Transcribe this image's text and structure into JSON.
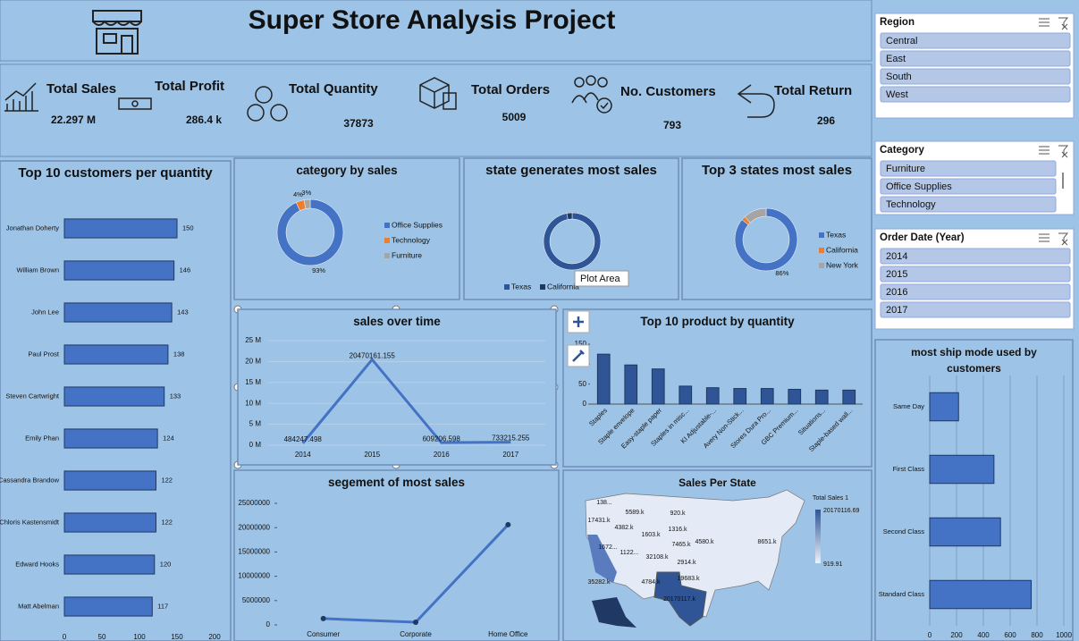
{
  "header": {
    "title": "Super Store Analysis Project"
  },
  "kpis": [
    {
      "label": "Total Sales",
      "value": "22.297 M"
    },
    {
      "label": "Total Profit",
      "value": "286.4 k"
    },
    {
      "label": "Total Quantity",
      "value": "37873"
    },
    {
      "label": "Total Orders",
      "value": "5009"
    },
    {
      "label": "No. Customers",
      "value": "793"
    },
    {
      "label": "Total Return",
      "value": "296"
    }
  ],
  "slicers": [
    {
      "title": "Region",
      "items": [
        "Central",
        "East",
        "South",
        "West"
      ]
    },
    {
      "title": "Category",
      "items": [
        "Furniture",
        "Office Supplies",
        "Technology"
      ]
    },
    {
      "title": "Order Date (Year)",
      "items": [
        "2014",
        "2015",
        "2016",
        "2017"
      ]
    }
  ],
  "chart_data": [
    {
      "type": "hbar",
      "title": "Top 10 customers per quantity",
      "categories": [
        "Jonathan Doherty",
        "William Brown",
        "John Lee",
        "Paul Prost",
        "Steven Cartwright",
        "Emily Phan",
        "Cassandra Brandow",
        "Chloris Kastensmidt",
        "Edward Hooks",
        "Matt Abelman"
      ],
      "values": [
        150,
        146,
        143,
        138,
        133,
        124,
        122,
        122,
        120,
        117
      ],
      "color": "#4472c4",
      "xlim": [
        0,
        200
      ],
      "xticks": [
        0,
        50,
        100,
        150,
        200
      ],
      "data_labels": true,
      "grid": false
    },
    {
      "type": "donut",
      "title": "category by sales",
      "categories": [
        "Office Supplies",
        "Technology",
        "Furniture"
      ],
      "values": [
        93,
        4,
        3
      ],
      "value_labels": [
        "93%",
        "4%",
        "3%"
      ],
      "colors": [
        "#4472c4",
        "#ed7d31",
        "#a5a5a5"
      ],
      "legend": "right"
    },
    {
      "type": "donut",
      "title": "state generates most sales",
      "categories": [
        "Texas",
        "California"
      ],
      "values": [
        97,
        3
      ],
      "colors": [
        "#2f5597",
        "#1f3864"
      ],
      "legend": "bottom",
      "tooltip": "Plot Area"
    },
    {
      "type": "donut",
      "title": "Top 3 states most sales",
      "categories": [
        "Texas",
        "California",
        "New York"
      ],
      "values": [
        86,
        2,
        12
      ],
      "value_labels": [
        "86%",
        null,
        null
      ],
      "colors": [
        "#4472c4",
        "#ed7d31",
        "#a5a5a5"
      ],
      "legend": "right"
    },
    {
      "type": "line",
      "title": "sales over time",
      "categories": [
        "2014",
        "2015",
        "2016",
        "2017"
      ],
      "values": [
        484247.498,
        20470161.155,
        609206.598,
        733215.255
      ],
      "color": "#4472c4",
      "ylim": [
        0,
        25000000
      ],
      "yticks": [
        {
          "value": 0,
          "label": "0 M"
        },
        {
          "value": 5000000,
          "label": "5 M"
        },
        {
          "value": 10000000,
          "label": "10 M"
        },
        {
          "value": 15000000,
          "label": "15 M"
        },
        {
          "value": 20000000,
          "label": "20 M"
        },
        {
          "value": 25000000,
          "label": "25 M"
        }
      ],
      "grid": true,
      "data_labels": true
    },
    {
      "type": "column",
      "title": "Top 10 product by quantity",
      "categories": [
        "Staples",
        "Staple envelope",
        "Easy-staple paper",
        "Staples in misc...",
        "KI Adjustable-...",
        "Avery Non-Stick...",
        "Stores Dura Pro...",
        "GBC Premium...",
        "Situations...",
        "Staple-based wall..."
      ],
      "values": [
        125,
        98,
        88,
        45,
        41,
        39,
        39,
        37,
        35,
        35
      ],
      "color": "#2f5597",
      "ylim": [
        0,
        150
      ],
      "yticks": [
        0,
        50,
        100,
        150
      ]
    },
    {
      "type": "line",
      "title": "segement of  most sales",
      "categories": [
        "Consumer",
        "Corporate",
        "Home Office"
      ],
      "values": [
        1300000,
        550000,
        20600000
      ],
      "color": "#4472c4",
      "ylim": [
        0,
        25000000
      ],
      "yticks": [
        0,
        5000000,
        10000000,
        15000000,
        20000000,
        25000000
      ],
      "markers": true,
      "grid": false
    },
    {
      "type": "map",
      "title": "Sales Per State",
      "legend_title": "Total Sales 1",
      "color_scale": [
        919.91,
        20170116.69
      ],
      "labels": [
        "138...",
        "5589.k",
        "920.k",
        "17431.k",
        "4382.k",
        "1603.k",
        "1316.k",
        "7465.k",
        "4580.k",
        "8651.k",
        "1672...",
        "1122...",
        "32108.k",
        "2914.k",
        "19683.k",
        "35282.k",
        "4784.k",
        "20170117.k"
      ]
    },
    {
      "type": "hbar",
      "title": "most ship mode used by customers",
      "categories": [
        "Same Day",
        "First Class",
        "Second Class",
        "Standard Class"
      ],
      "values": [
        215,
        479,
        528,
        757
      ],
      "color": "#4472c4",
      "xlim": [
        0,
        1000
      ],
      "xticks": [
        0,
        200,
        400,
        600,
        800,
        1000
      ],
      "grid": true
    }
  ]
}
